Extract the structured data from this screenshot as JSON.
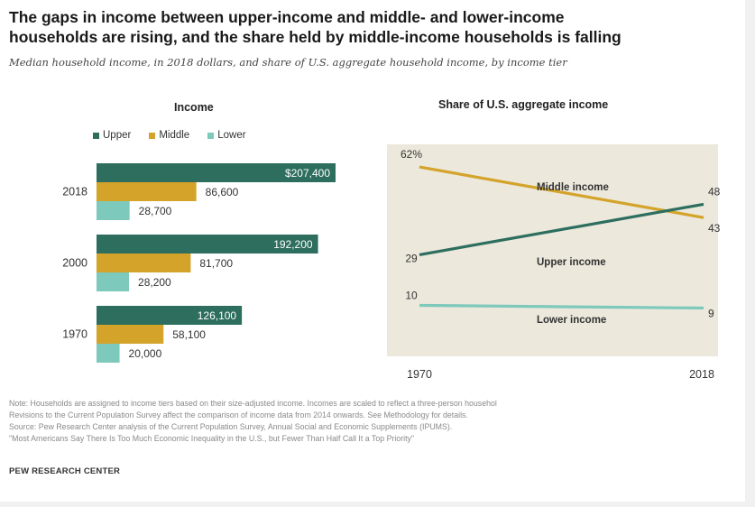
{
  "title_line1": "The gaps in income between upper-income and middle- and lower-income",
  "title_line2": "households are rising, and the share held by middle-income households is falling",
  "subtitle": "Median household income, in 2018 dollars, and share of U.S. aggregate household income, by income tier",
  "colors": {
    "upper": "#2d6e5e",
    "middle": "#d4a32a",
    "lower": "#7dc9bb",
    "panel_bg": "#ece8dc"
  },
  "legend": {
    "upper": "Upper",
    "middle": "Middle",
    "lower": "Lower"
  },
  "chart_data": [
    {
      "type": "bar",
      "orientation": "horizontal",
      "title": "Income",
      "categories": [
        "2018",
        "2000",
        "1970"
      ],
      "series": [
        {
          "name": "Upper",
          "values": [
            207400,
            192200,
            126100
          ],
          "labels": [
            "$207,400",
            "192,200",
            "126,100"
          ]
        },
        {
          "name": "Middle",
          "values": [
            86600,
            81700,
            58100
          ],
          "labels": [
            "86,600",
            "81,700",
            "58,100"
          ]
        },
        {
          "name": "Lower",
          "values": [
            28700,
            28200,
            20000
          ],
          "labels": [
            "28,700",
            "28,200",
            "20,000"
          ]
        }
      ],
      "legend_position": "top-left"
    },
    {
      "type": "line",
      "title": "Share of U.S. aggregate income",
      "x": [
        "1970",
        "2018"
      ],
      "series": [
        {
          "name": "Middle income",
          "values": [
            62,
            43
          ],
          "start_label": "62%",
          "end_label": "43"
        },
        {
          "name": "Upper income",
          "values": [
            29,
            48
          ],
          "start_label": "29",
          "end_label": "48"
        },
        {
          "name": "Lower income",
          "values": [
            10,
            9
          ],
          "start_label": "10",
          "end_label": "9"
        }
      ],
      "ylim": [
        0,
        70
      ],
      "grid": false
    }
  ],
  "notes": [
    "Note: Households are assigned to income tiers based on their size-adjusted income. Incomes are scaled to reflect a three-person househol",
    "Revisions to the Current Population Survey affect the comparison of income data from 2014 onwards. See Methodology for details.",
    "Source: Pew Research Center analysis of the Current Population Survey, Annual Social and Economic Supplements (IPUMS).",
    "\"Most Americans Say There Is Too Much Economic Inequality in the U.S., but Fewer Than Half Call It a Top Priority\""
  ],
  "brand": "PEW RESEARCH CENTER"
}
